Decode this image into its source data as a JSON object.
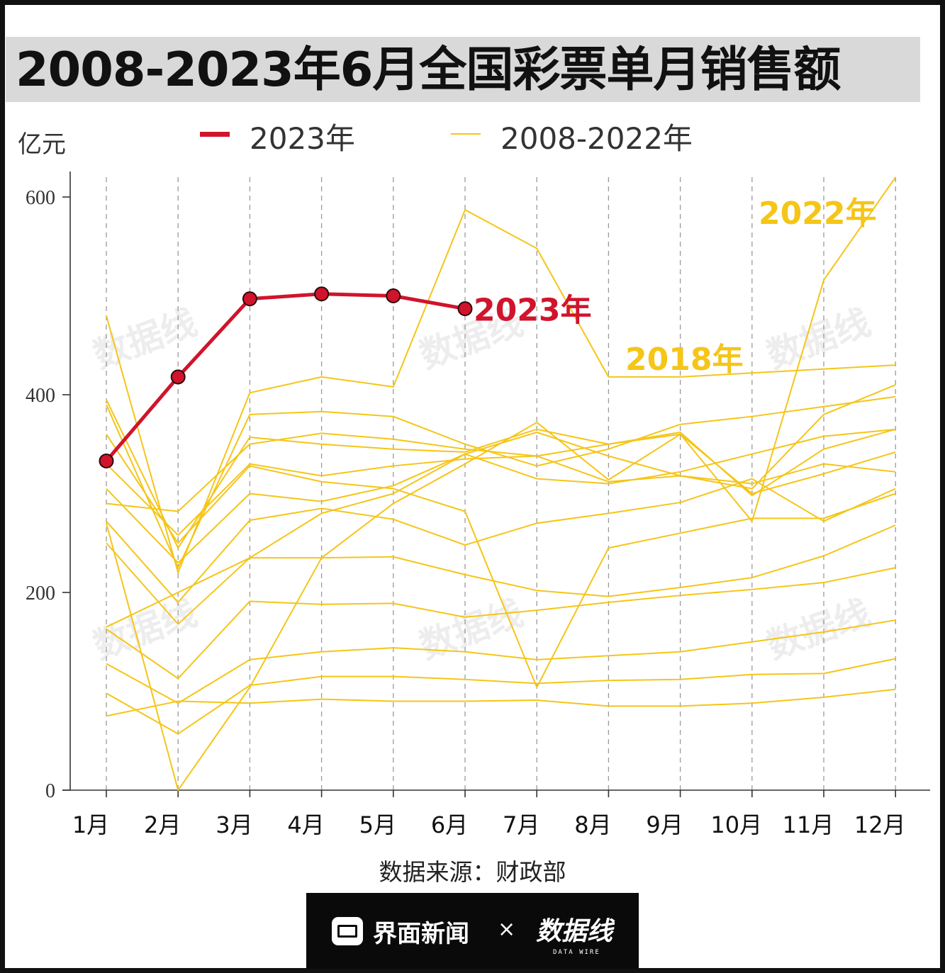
{
  "title": "2008-2023年6月全国彩票单月销售额",
  "unit_label": "亿元",
  "legend": [
    {
      "label": "2023年",
      "color": "#d0142c"
    },
    {
      "label": "2008-2022年",
      "color": "#f5c518"
    }
  ],
  "source": "数据来源：财政部",
  "footer": {
    "brand": "界面新闻",
    "separator": "×",
    "partner_logo": "数据线",
    "partner_sub": "DATA WIRE"
  },
  "watermark": {
    "text": "数据线",
    "sub": "DATA WIRE"
  },
  "colors": {
    "highlight": "#d0142c",
    "history": "#f5c518",
    "annotation": "#f5c518",
    "axis": "#333333"
  },
  "chart_data": {
    "type": "line",
    "categories": [
      "1月",
      "2月",
      "3月",
      "4月",
      "5月",
      "6月",
      "7月",
      "8月",
      "9月",
      "10月",
      "11月",
      "12月"
    ],
    "ylim": [
      0,
      600
    ],
    "yticks": [
      0,
      200,
      400,
      600
    ],
    "ylabel": "亿元",
    "grid": "vertical dashed",
    "highlight_series": {
      "name": "2023年",
      "values": [
        333,
        418,
        497,
        502,
        500,
        487
      ],
      "annotation": "2023年"
    },
    "history_series": [
      {
        "values": [
          75,
          90,
          88,
          92,
          90,
          90,
          91,
          85,
          85,
          88,
          94,
          102
        ]
      },
      {
        "values": [
          98,
          57,
          106,
          115,
          115,
          112,
          108,
          111,
          112,
          117,
          118,
          133
        ]
      },
      {
        "values": [
          128,
          88,
          132,
          140,
          144,
          140,
          132,
          136,
          140,
          150,
          160,
          172
        ]
      },
      {
        "values": [
          163,
          113,
          191,
          188,
          189,
          175,
          182,
          190,
          197,
          203,
          210,
          225
        ]
      },
      {
        "values": [
          250,
          168,
          235,
          235,
          236,
          218,
          202,
          196,
          205,
          215,
          237,
          268
        ]
      },
      {
        "values": [
          272,
          190,
          273,
          285,
          274,
          248,
          270,
          280,
          291,
          315,
          272,
          305
        ]
      },
      {
        "values": [
          290,
          282,
          350,
          361,
          355,
          345,
          338,
          350,
          362,
          298,
          345,
          365
        ]
      },
      {
        "values": [
          305,
          230,
          300,
          292,
          308,
          340,
          315,
          310,
          322,
          340,
          358,
          365
        ]
      },
      {
        "values": [
          330,
          258,
          330,
          318,
          328,
          335,
          338,
          312,
          318,
          305,
          380,
          410
        ]
      },
      {
        "values": [
          165,
          200,
          235,
          280,
          300,
          340,
          362,
          338,
          318,
          310,
          330,
          322
        ]
      },
      {
        "values": [
          390,
          225,
          380,
          383,
          378,
          350,
          328,
          345,
          370,
          378,
          388,
          398
        ]
      },
      {
        "values": [
          480,
          220,
          402,
          418,
          408,
          587,
          548,
          418,
          418,
          422,
          426,
          430
        ]
      },
      {
        "values": [
          270,
          0,
          104,
          235,
          290,
          330,
          372,
          314,
          360,
          272,
          516,
          620
        ],
        "annotation": "2022年"
      },
      {
        "values": [
          395,
          245,
          357,
          350,
          345,
          342,
          365,
          350,
          360,
          300,
          320,
          342
        ]
      },
      {
        "values": [
          360,
          250,
          328,
          312,
          305,
          282,
          104,
          245,
          260,
          275,
          275,
          300
        ]
      }
    ],
    "annotations": [
      {
        "text": "2023年",
        "series": "2023年"
      },
      {
        "text": "2018年",
        "series": "history_11"
      },
      {
        "text": "2022年",
        "series": "history_12"
      }
    ]
  }
}
